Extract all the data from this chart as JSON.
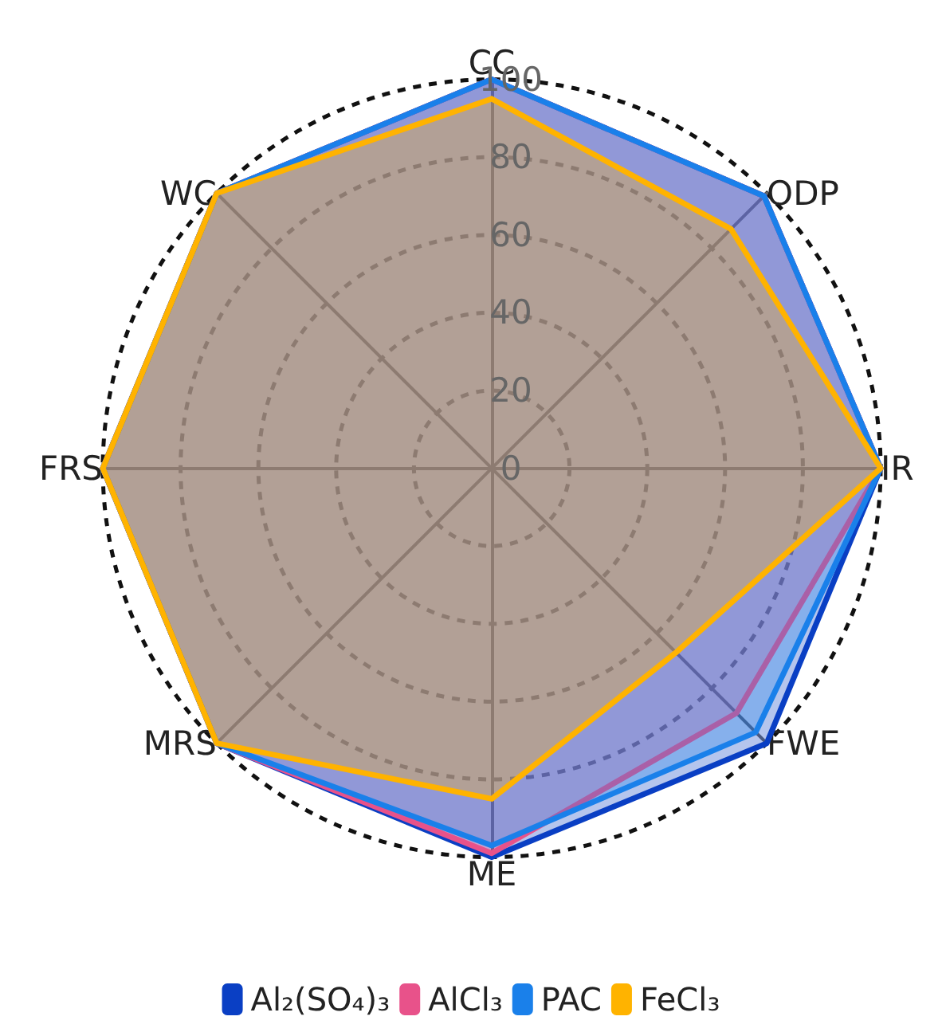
{
  "chart_data": {
    "type": "radar",
    "categories": [
      "CC",
      "ODP",
      "IR",
      "FWE",
      "ME",
      "MRS",
      "FRS",
      "WC"
    ],
    "series": [
      {
        "name": "Al₂(SO₄)₃",
        "color": "#0a3fc4",
        "values": [
          100,
          99,
          100,
          100,
          100,
          100,
          100,
          100
        ]
      },
      {
        "name": "AlCl₃",
        "color": "#e8528a",
        "values": [
          100,
          99,
          100,
          89,
          99,
          100,
          100,
          100
        ]
      },
      {
        "name": "PAC",
        "color": "#1a80ea",
        "values": [
          100,
          99,
          100,
          96,
          97,
          100,
          100,
          100
        ]
      },
      {
        "name": "FeCl₃",
        "color": "#ffb300",
        "values": [
          95,
          87,
          100,
          67,
          85,
          100,
          100,
          100
        ]
      }
    ],
    "ylim": [
      0,
      100
    ],
    "yticks": [
      0,
      20,
      40,
      60,
      80,
      100
    ],
    "legend": "bottom",
    "marker": "none",
    "line_style": "solid"
  }
}
